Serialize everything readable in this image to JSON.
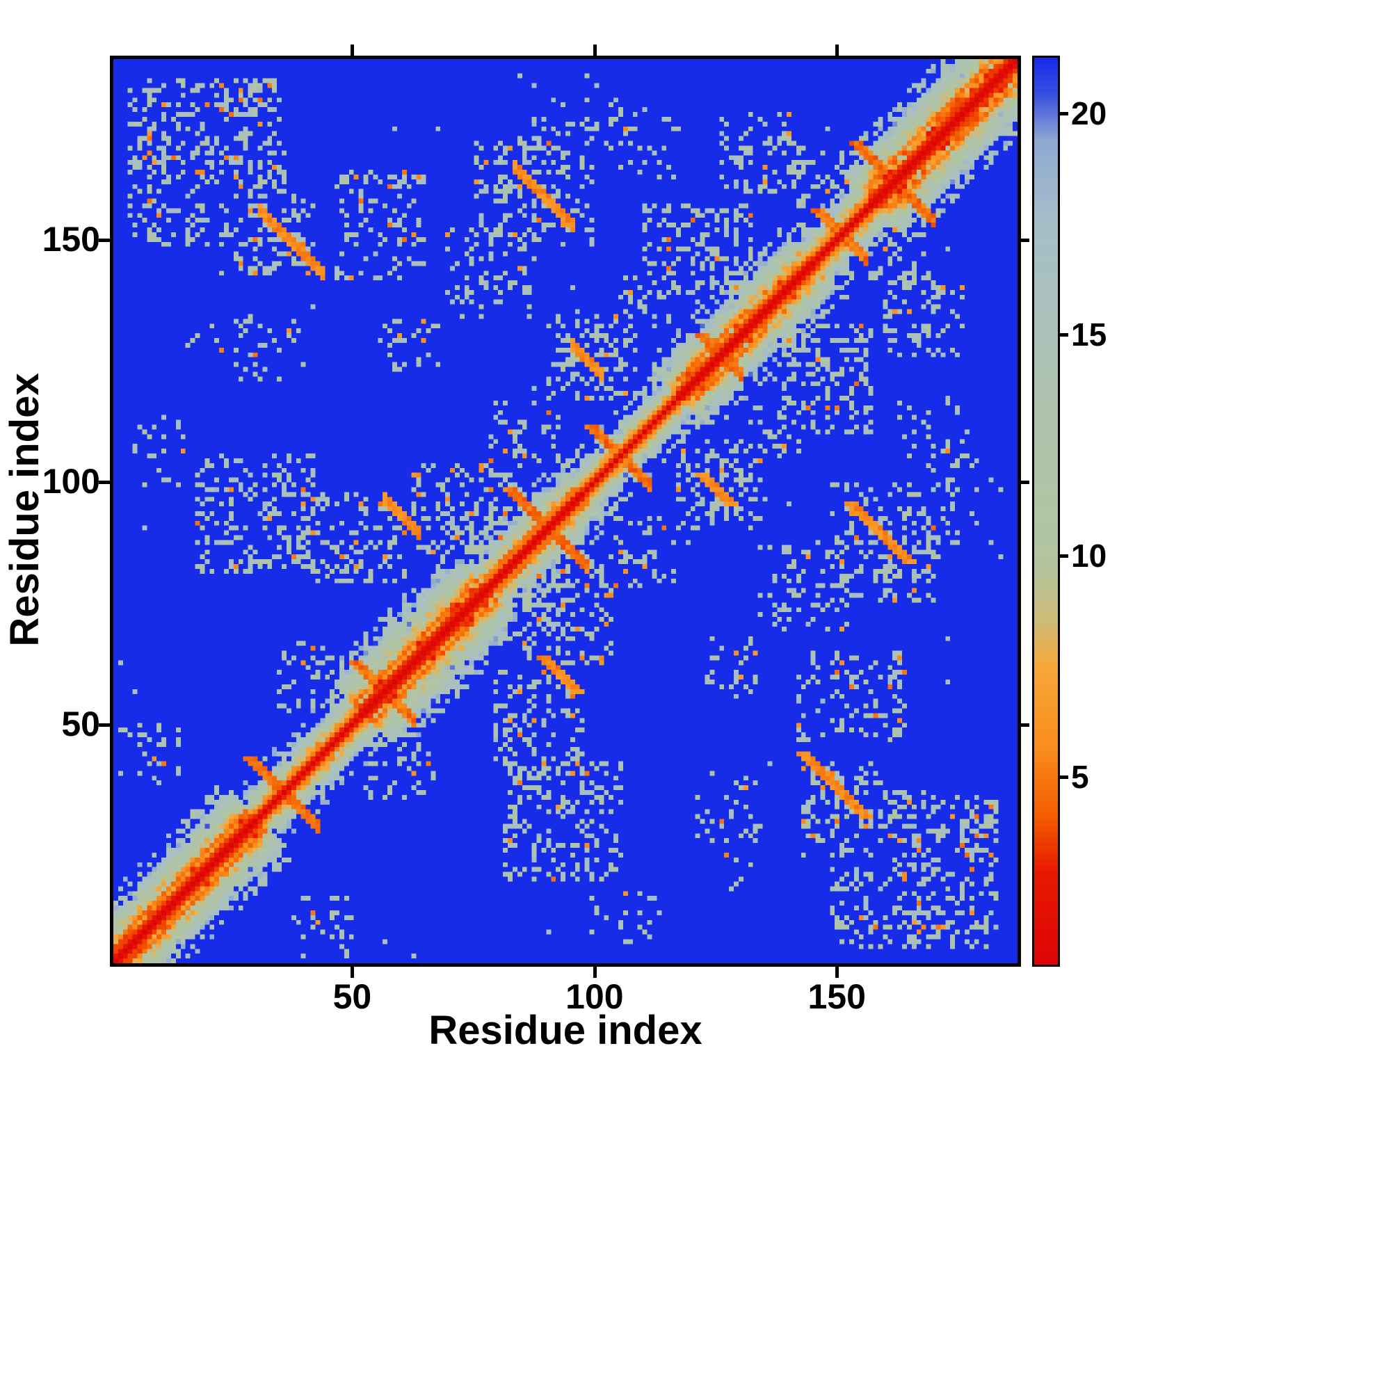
{
  "figure": {
    "xlabel": "Residue index",
    "ylabel": "Residue index"
  },
  "chart_data": {
    "type": "heatmap",
    "title": "",
    "xlabel": "Residue index",
    "ylabel": "Residue index",
    "x_range": [
      1,
      188
    ],
    "y_range": [
      1,
      188
    ],
    "x_ticks": [
      50,
      100,
      150
    ],
    "y_ticks": [
      50,
      100,
      150
    ],
    "grid": false,
    "legend_position": "colorbar-right",
    "colorbar": {
      "ticks": [
        5,
        10,
        15,
        20
      ],
      "vmin": 0.7,
      "vmax": 21.3
    },
    "colormap": {
      "name": "distance-map red-orange-gray-blue (coolwarm reversed style)",
      "stops": [
        {
          "t": 0.0,
          "color": "#dc0606"
        },
        {
          "t": 0.1,
          "color": "#e81800"
        },
        {
          "t": 0.16,
          "color": "#f35a00"
        },
        {
          "t": 0.24,
          "color": "#f98e1c"
        },
        {
          "t": 0.33,
          "color": "#f6a83c"
        },
        {
          "t": 0.38,
          "color": "#cdbb79"
        },
        {
          "t": 0.44,
          "color": "#b2c49f"
        },
        {
          "t": 0.62,
          "color": "#aec3ae"
        },
        {
          "t": 0.82,
          "color": "#a6bec8"
        },
        {
          "t": 0.91,
          "color": "#8fa8d2"
        },
        {
          "t": 0.96,
          "color": "#3a50e0"
        },
        {
          "t": 1.0,
          "color": "#162ce8"
        }
      ]
    },
    "matrix_spec": {
      "approximation_note": "Symmetric residue-residue distance map: red main diagonal (near contacts), orange anti-diagonal hairpin stripes, orange parallel off-diagonal stripes, pale speckled mid-range contact clusters, dark blue background at/above scale maximum.",
      "n": 188,
      "background_value": 21.3,
      "halo_segments": [
        {
          "from": 0,
          "to": 30,
          "width": 11
        },
        {
          "from": 30,
          "to": 52,
          "width": 7
        },
        {
          "from": 52,
          "to": 78,
          "width": 12
        },
        {
          "from": 78,
          "to": 98,
          "width": 8
        },
        {
          "from": 98,
          "to": 118,
          "width": 6
        },
        {
          "from": 118,
          "to": 146,
          "width": 10
        },
        {
          "from": 146,
          "to": 158,
          "width": 7
        },
        {
          "from": 158,
          "to": 189,
          "width": 12
        }
      ],
      "parallel_contacts": [
        {
          "start": 2,
          "len": 26,
          "offset": 4
        },
        {
          "start": 56,
          "len": 18,
          "offset": 4
        },
        {
          "start": 78,
          "len": 14,
          "offset": 3
        },
        {
          "start": 118,
          "len": 14,
          "offset": 4
        },
        {
          "start": 158,
          "len": 26,
          "offset": 5
        }
      ],
      "antiparallel_hairpins": [
        {
          "center": 36,
          "arm": 7
        },
        {
          "center": 57,
          "arm": 6
        },
        {
          "center": 91,
          "arm": 8
        },
        {
          "center": 106,
          "arm": 6
        },
        {
          "center": 127,
          "arm": 4
        },
        {
          "center": 152,
          "arm": 5
        },
        {
          "center": 163,
          "arm": 8
        }
      ],
      "long_range_contacts": [
        {
          "a": 31,
          "b": 157,
          "len": 13
        },
        {
          "a": 84,
          "b": 166,
          "len": 12
        },
        {
          "a": 57,
          "b": 97,
          "len": 7
        },
        {
          "a": 96,
          "b": 129,
          "len": 6
        }
      ],
      "contact_clusters": [
        {
          "a": 20,
          "b": 167,
          "ra": 16,
          "rb": 17,
          "density": 0.28
        },
        {
          "a": 34,
          "b": 152,
          "ra": 8,
          "rb": 8,
          "density": 0.3
        },
        {
          "a": 56,
          "b": 154,
          "ra": 9,
          "rb": 11,
          "density": 0.18
        },
        {
          "a": 88,
          "b": 161,
          "ra": 12,
          "rb": 11,
          "density": 0.26
        },
        {
          "a": 79,
          "b": 144,
          "ra": 9,
          "rb": 9,
          "density": 0.2
        },
        {
          "a": 122,
          "b": 149,
          "ra": 11,
          "rb": 9,
          "density": 0.3
        },
        {
          "a": 135,
          "b": 169,
          "ra": 8,
          "rb": 8,
          "density": 0.25
        },
        {
          "a": 30,
          "b": 94,
          "ra": 12,
          "rb": 12,
          "density": 0.24
        },
        {
          "a": 52,
          "b": 89,
          "ra": 9,
          "rb": 9,
          "density": 0.3
        },
        {
          "a": 74,
          "b": 95,
          "ra": 11,
          "rb": 9,
          "density": 0.3
        },
        {
          "a": 100,
          "b": 127,
          "ra": 9,
          "rb": 9,
          "density": 0.26
        },
        {
          "a": 33,
          "b": 128,
          "ra": 7,
          "rb": 6,
          "density": 0.15
        },
        {
          "a": 106,
          "b": 172,
          "ra": 11,
          "rb": 8,
          "density": 0.14
        },
        {
          "a": 10,
          "b": 107,
          "ra": 5,
          "rb": 7,
          "density": 0.15
        },
        {
          "a": 148,
          "b": 164,
          "ra": 6,
          "rb": 6,
          "density": 0.25
        },
        {
          "a": 112,
          "b": 139,
          "ra": 6,
          "rb": 6,
          "density": 0.2
        },
        {
          "a": 8,
          "b": 44,
          "ra": 6,
          "rb": 6,
          "density": 0.2
        },
        {
          "a": 41,
          "b": 60,
          "ra": 6,
          "rb": 7,
          "density": 0.22
        },
        {
          "a": 86,
          "b": 111,
          "ra": 7,
          "rb": 6,
          "density": 0.2
        },
        {
          "a": 95,
          "b": 178,
          "ra": 8,
          "rb": 6,
          "density": 0.13
        },
        {
          "a": 62,
          "b": 129,
          "ra": 6,
          "rb": 5,
          "density": 0.12
        },
        {
          "a": 20,
          "b": 130,
          "ra": 5,
          "rb": 5,
          "density": 0.1
        }
      ]
    }
  }
}
